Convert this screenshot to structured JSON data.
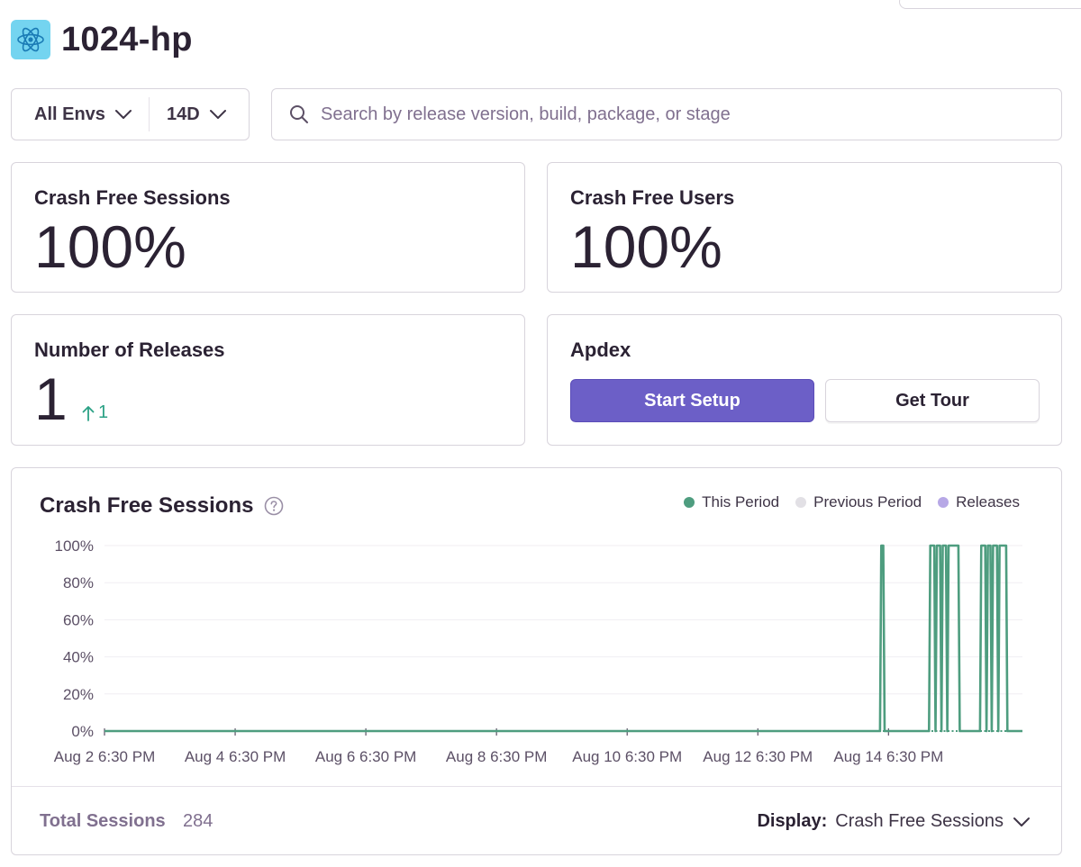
{
  "project": {
    "name": "1024-hp",
    "icon": "react-atom-icon",
    "icon_bg": "#74d4f0"
  },
  "filters": {
    "environment": "All Envs",
    "period": "14D"
  },
  "search": {
    "placeholder": "Search by release version, build, package, or stage"
  },
  "cards": {
    "crash_free_sessions": {
      "label": "Crash Free Sessions",
      "value": "100%"
    },
    "crash_free_users": {
      "label": "Crash Free Users",
      "value": "100%"
    },
    "releases": {
      "label": "Number of Releases",
      "value": "1",
      "delta": "1",
      "delta_direction": "up"
    },
    "apdex": {
      "label": "Apdex",
      "start_setup": "Start Setup",
      "get_tour": "Get Tour"
    }
  },
  "chart_section": {
    "title": "Crash Free Sessions",
    "legend": [
      {
        "label": "This Period",
        "color": "#4e9d7f"
      },
      {
        "label": "Previous Period",
        "color": "#e2e0e5"
      },
      {
        "label": "Releases",
        "color": "#b7a8e6"
      }
    ],
    "footer": {
      "total_label": "Total Sessions",
      "total_value": "284",
      "display_label": "Display:",
      "display_value": "Crash Free Sessions"
    }
  },
  "colors": {
    "accent": "#6c5fc7",
    "series": "#4e9d7f",
    "positive": "#2ba185"
  },
  "chart_data": {
    "type": "line",
    "title": "Crash Free Sessions",
    "ylim": [
      0,
      100
    ],
    "y_ticks": [
      "0%",
      "20%",
      "40%",
      "60%",
      "80%",
      "100%"
    ],
    "x_ticks": [
      "Aug 2 6:30 PM",
      "Aug 4 6:30 PM",
      "Aug 6 6:30 PM",
      "Aug 8 6:30 PM",
      "Aug 10 6:30 PM",
      "Aug 12 6:30 PM",
      "Aug 14 6:30 PM"
    ],
    "x_range_days": [
      0,
      14.05
    ],
    "grid": true,
    "legend_position": "top-right",
    "series": [
      {
        "name": "This Period",
        "color": "#4e9d7f",
        "points": [
          [
            0,
            0
          ],
          [
            11.87,
            0
          ],
          [
            11.89,
            100
          ],
          [
            11.92,
            100
          ],
          [
            11.94,
            0
          ],
          [
            12.62,
            0
          ],
          [
            12.64,
            100
          ],
          [
            12.7,
            100
          ],
          [
            12.72,
            0
          ],
          [
            12.74,
            100
          ],
          [
            12.79,
            100
          ],
          [
            12.81,
            0
          ],
          [
            12.83,
            100
          ],
          [
            12.88,
            100
          ],
          [
            12.9,
            0
          ],
          [
            12.92,
            100
          ],
          [
            13.07,
            100
          ],
          [
            13.09,
            0
          ],
          [
            13.4,
            0
          ],
          [
            13.42,
            100
          ],
          [
            13.48,
            100
          ],
          [
            13.5,
            0
          ],
          [
            13.52,
            100
          ],
          [
            13.56,
            100
          ],
          [
            13.58,
            0
          ],
          [
            13.6,
            100
          ],
          [
            13.66,
            100
          ],
          [
            13.68,
            0
          ],
          [
            13.7,
            100
          ],
          [
            13.8,
            100
          ],
          [
            13.82,
            0
          ],
          [
            14.05,
            0
          ]
        ]
      }
    ]
  }
}
